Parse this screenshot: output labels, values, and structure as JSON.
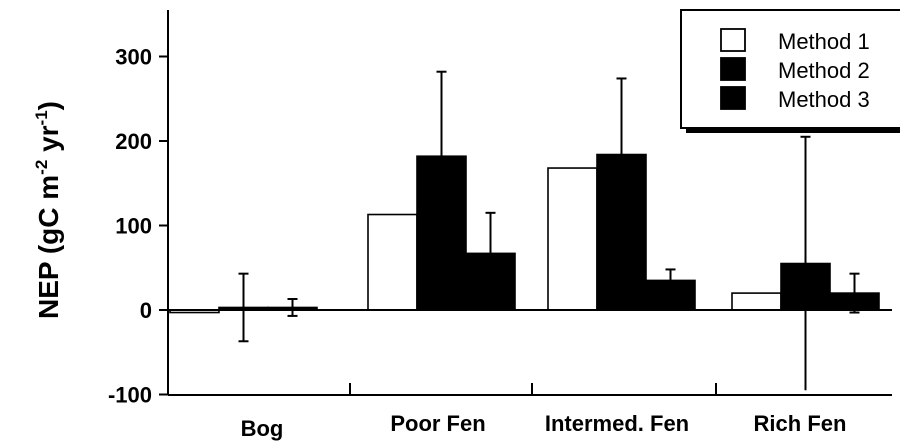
{
  "chart_data": {
    "type": "bar",
    "title": "",
    "xlabel": "",
    "ylabel_parts": {
      "main": "NEP (gC m",
      "sup1": "-2",
      "mid": " yr",
      "sup2": "-1",
      "end": ")"
    },
    "ylim": [
      -100,
      350
    ],
    "yticks": [
      -100,
      0,
      100,
      200,
      300
    ],
    "categories": [
      "Bog",
      "Poor Fen",
      "Intermed. Fen",
      "Rich Fen"
    ],
    "series": [
      {
        "name": "Method 1",
        "values": [
          -3,
          113,
          168,
          20
        ],
        "errors": [
          null,
          null,
          null,
          null
        ],
        "fill": "#ffffff"
      },
      {
        "name": "Method 2",
        "values": [
          3,
          182,
          184,
          55
        ],
        "errors": [
          40,
          100,
          90,
          150
        ],
        "fill": "#000000"
      },
      {
        "name": "Method 3",
        "values": [
          3,
          67,
          35,
          20
        ],
        "errors": [
          10,
          48,
          13,
          23
        ],
        "fill": "#000000"
      }
    ],
    "legend_position": "top-right",
    "grid": false
  }
}
